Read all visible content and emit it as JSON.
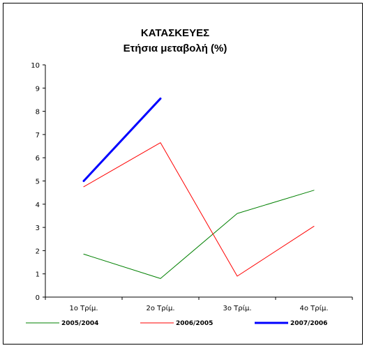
{
  "chart_data": {
    "type": "line",
    "title": "ΚΑΤΑΣΚΕΥΕΣ",
    "subtitle": "Ετήσια μεταβολή (%)",
    "categories": [
      "1ο Τρίμ.",
      "2ο Τρίμ.",
      "3ο Τρίμ.",
      "4ο Τρίμ."
    ],
    "ylim": [
      0,
      10
    ],
    "yticks": [
      0,
      1,
      2,
      3,
      4,
      5,
      6,
      7,
      8,
      9,
      10
    ],
    "grid": false,
    "legend_position": "bottom",
    "series": [
      {
        "name": "2005/2004",
        "color": "#008000",
        "width": 1,
        "values": [
          1.85,
          0.8,
          3.6,
          4.6
        ]
      },
      {
        "name": "2006/2005",
        "color": "#ff0000",
        "width": 1,
        "values": [
          4.75,
          6.65,
          0.9,
          3.05
        ]
      },
      {
        "name": "2007/2006",
        "color": "#0000ff",
        "width": 3,
        "values": [
          5.0,
          8.55,
          null,
          null
        ]
      }
    ]
  }
}
